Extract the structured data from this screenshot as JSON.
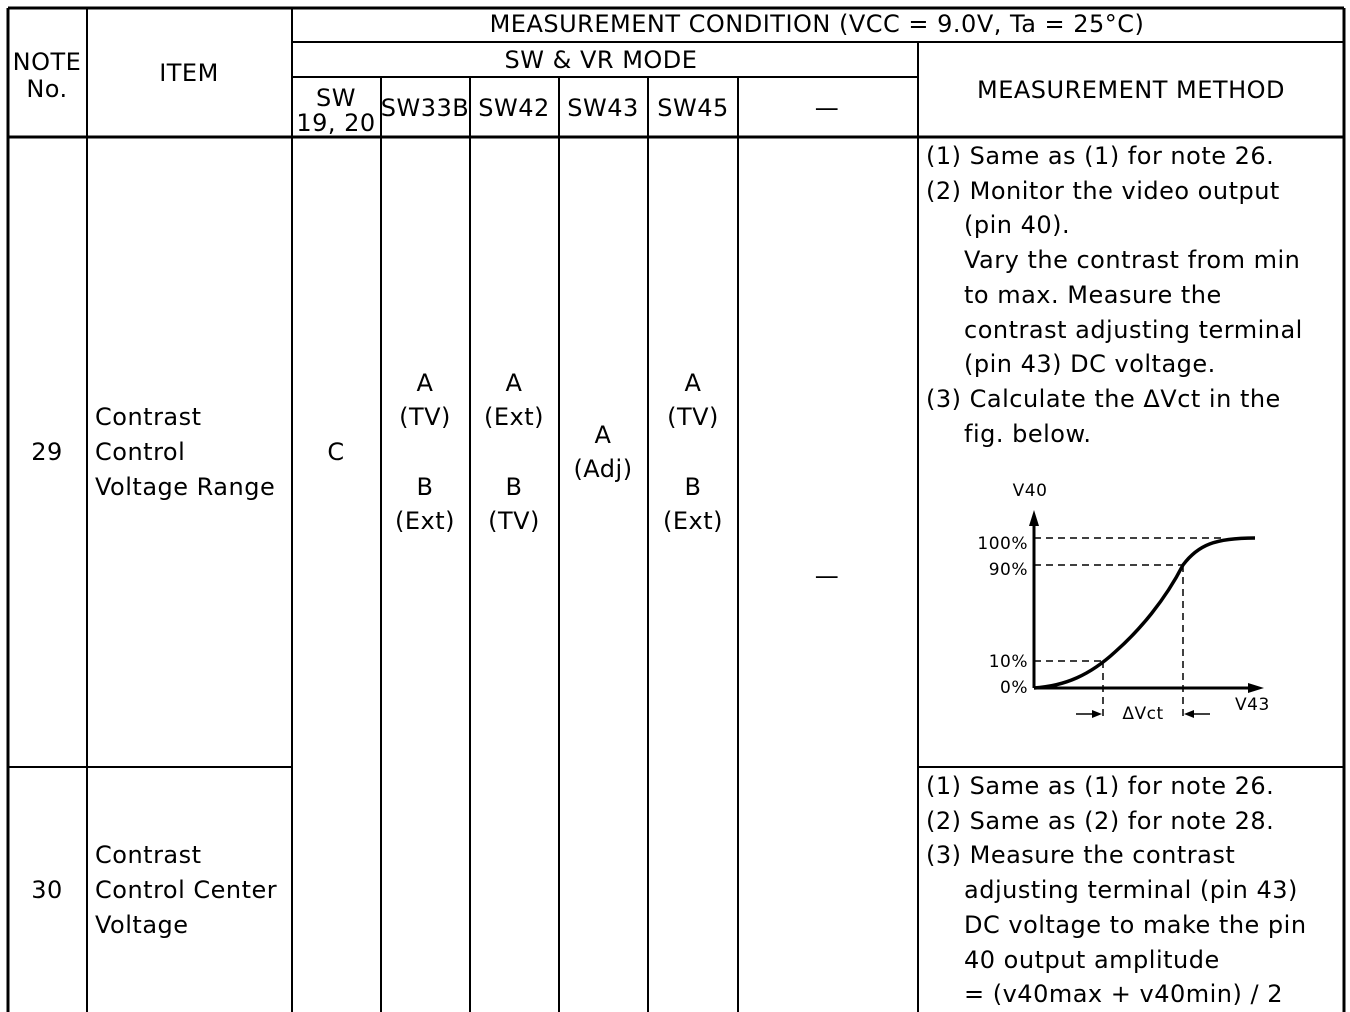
{
  "header": {
    "note_no": [
      "NOTE",
      "No."
    ],
    "item": "ITEM",
    "measurement_condition": "MEASUREMENT CONDITION (VCC = 9.0V, Ta = 25°C)",
    "sw_vr_mode": "SW & VR MODE",
    "columns": [
      "SW\n19, 20",
      "SW33B",
      "SW42",
      "SW43",
      "SW45",
      "—"
    ],
    "measurement_method": "MEASUREMENT METHOD"
  },
  "rows": [
    {
      "note": "29",
      "item": [
        "Contrast",
        "Control",
        "Voltage Range"
      ],
      "sw19_20": "C",
      "sw33b": [
        "A",
        "(TV)",
        "",
        "B",
        "(Ext)"
      ],
      "sw42": [
        "A",
        "(Ext)",
        "",
        "B",
        "(TV)"
      ],
      "sw43": [
        "A",
        "(Adj)"
      ],
      "sw45": [
        "A",
        "(TV)",
        "",
        "B",
        "(Ext)"
      ],
      "extra": "—",
      "method": [
        "(1) Same as (1) for note 26.",
        "(2) Monitor the video output",
        "(pin 40).",
        "Vary the contrast from min",
        "to max. Measure the",
        "contrast adjusting terminal",
        "(pin 43) DC voltage.",
        "(3) Calculate the ΔVct in the",
        "fig. below."
      ],
      "figure": {
        "y_axis": "V40",
        "x_axis": "V43",
        "levels": [
          "100%",
          "90%",
          "10%",
          "0%"
        ],
        "delta_label": "ΔVct"
      }
    },
    {
      "note": "30",
      "item": [
        "Contrast",
        "Control Center",
        "Voltage"
      ],
      "method": [
        "(1) Same as (1) for note 26.",
        "(2) Same as (2) for note 28.",
        "(3) Measure the contrast",
        "adjusting terminal (pin 43)",
        "DC voltage to make the pin",
        "40 output amplitude",
        "= (v40max + v40min) / 2"
      ]
    }
  ]
}
